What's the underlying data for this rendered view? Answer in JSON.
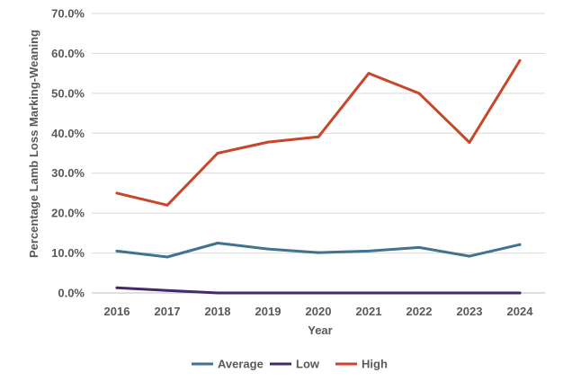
{
  "chart_data": {
    "type": "line",
    "title": "",
    "xlabel": "Year",
    "ylabel": "Percentage Lamb Loss Marking-Weaning",
    "categories": [
      "2016",
      "2017",
      "2018",
      "2019",
      "2020",
      "2021",
      "2022",
      "2023",
      "2024"
    ],
    "y_ticks": [
      "0.0%",
      "10.0%",
      "20.0%",
      "30.0%",
      "40.0%",
      "50.0%",
      "60.0%",
      "70.0%"
    ],
    "ylim": [
      0,
      70
    ],
    "grid": true,
    "legend_position": "bottom",
    "series": [
      {
        "name": "Average",
        "color": "#41728f",
        "values": [
          10.5,
          9.0,
          12.5,
          11.0,
          10.1,
          10.5,
          11.4,
          9.2,
          12.1
        ]
      },
      {
        "name": "Low",
        "color": "#44296b",
        "values": [
          1.3,
          0.6,
          0.0,
          0.0,
          0.0,
          0.0,
          0.0,
          0.0,
          0.0
        ]
      },
      {
        "name": "High",
        "color": "#c8462a",
        "values": [
          25.0,
          22.0,
          35.0,
          37.8,
          39.1,
          55.0,
          50.0,
          37.7,
          58.2
        ]
      }
    ]
  }
}
